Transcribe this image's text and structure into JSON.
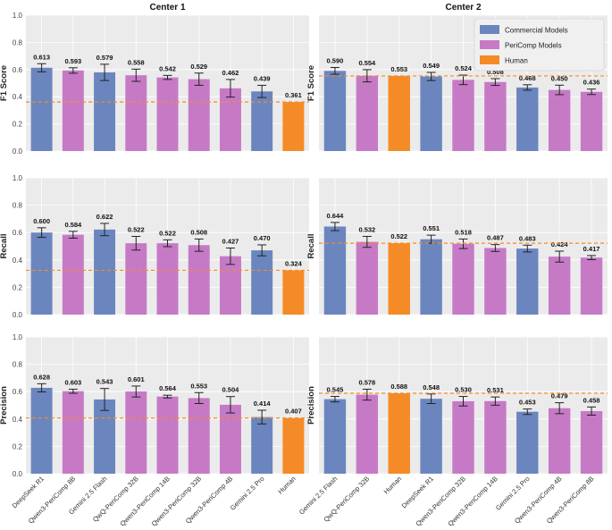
{
  "colors": {
    "commercial": "#6b86bf",
    "pericomp": "#c67ac6",
    "human": "#f58b26"
  },
  "legend": [
    {
      "key": "commercial",
      "label": "Commercial Models"
    },
    {
      "key": "pericomp",
      "label": "PeriComp Models"
    },
    {
      "key": "human",
      "label": "Human"
    }
  ],
  "chart_data": [
    {
      "type": "bar",
      "title": "Center 1",
      "ylabel": "F1 Score",
      "ylim": [
        0,
        1.0
      ],
      "yticks": [
        "0.0",
        "0.2",
        "0.4",
        "0.6",
        "0.8",
        "1.0"
      ],
      "categories": [
        "DeepSeek R1",
        "Qwen3-PeriComp 8B",
        "Gemini 2.5 Flash",
        "QwQ-PeriComp 32B",
        "Qwen3-PeriComp 14B",
        "Qwen3-PeriComp 32B",
        "Qwen3-PeriComp 4B",
        "Gemini 2.5 Pro",
        "Human"
      ],
      "groups": [
        "commercial",
        "pericomp",
        "commercial",
        "pericomp",
        "pericomp",
        "pericomp",
        "pericomp",
        "commercial",
        "human"
      ],
      "values": [
        0.613,
        0.593,
        0.579,
        0.558,
        0.542,
        0.529,
        0.462,
        0.439,
        0.361
      ],
      "labels": [
        "0.613",
        "0.593",
        "0.579",
        "0.558",
        "0.542",
        "0.529",
        "0.462",
        "0.439",
        "0.361"
      ],
      "errors": [
        0.03,
        0.02,
        0.06,
        0.045,
        0.015,
        0.045,
        0.065,
        0.045,
        0.0
      ],
      "human_line": 0.361
    },
    {
      "type": "bar",
      "title": "Center 2",
      "ylabel": "F1 Score",
      "ylim": [
        0,
        1.0
      ],
      "yticks": [
        "0.0",
        "0.2",
        "0.4",
        "0.6",
        "0.8",
        "1.0"
      ],
      "categories": [
        "Gemini 2.5 Flash",
        "QwQ-PeriComp 32B",
        "Human",
        "DeepSeek R1",
        "Qwen3-PeriComp 32B",
        "Qwen3-PeriComp 14B",
        "Gemini 2.5 Pro",
        "Qwen3-PeriComp 4B",
        "Qwen3-PeriComp 8B"
      ],
      "groups": [
        "commercial",
        "pericomp",
        "human",
        "commercial",
        "pericomp",
        "pericomp",
        "commercial",
        "pericomp",
        "pericomp"
      ],
      "values": [
        0.59,
        0.554,
        0.553,
        0.549,
        0.524,
        0.508,
        0.468,
        0.45,
        0.436
      ],
      "labels": [
        "0.590",
        "0.554",
        "0.553",
        "0.549",
        "0.524",
        "0.508",
        "0.468",
        "0.450",
        "0.436"
      ],
      "errors": [
        0.025,
        0.045,
        0.0,
        0.03,
        0.035,
        0.025,
        0.02,
        0.035,
        0.02
      ],
      "human_line": 0.553
    },
    {
      "type": "bar",
      "title": "",
      "ylabel": "Recall",
      "ylim": [
        0,
        1.0
      ],
      "yticks": [
        "0.0",
        "0.2",
        "0.4",
        "0.6",
        "0.8",
        "1.0"
      ],
      "categories": [
        "DeepSeek R1",
        "Qwen3-PeriComp 8B",
        "Gemini 2.5 Flash",
        "QwQ-PeriComp 32B",
        "Qwen3-PeriComp 14B",
        "Qwen3-PeriComp 32B",
        "Qwen3-PeriComp 4B",
        "Gemini 2.5 Pro",
        "Human"
      ],
      "groups": [
        "commercial",
        "pericomp",
        "commercial",
        "pericomp",
        "pericomp",
        "pericomp",
        "pericomp",
        "commercial",
        "human"
      ],
      "values": [
        0.6,
        0.584,
        0.622,
        0.522,
        0.522,
        0.508,
        0.427,
        0.47,
        0.324
      ],
      "labels": [
        "0.600",
        "0.584",
        "0.622",
        "0.522",
        "0.522",
        "0.508",
        "0.427",
        "0.470",
        "0.324"
      ],
      "errors": [
        0.035,
        0.025,
        0.045,
        0.05,
        0.025,
        0.045,
        0.06,
        0.04,
        0.0
      ],
      "human_line": 0.324
    },
    {
      "type": "bar",
      "title": "",
      "ylabel": "Recall",
      "ylim": [
        0,
        1.0
      ],
      "yticks": [
        "0.0",
        "0.2",
        "0.4",
        "0.6",
        "0.8",
        "1.0"
      ],
      "categories": [
        "Gemini 2.5 Flash",
        "QwQ-PeriComp 32B",
        "Human",
        "DeepSeek R1",
        "Qwen3-PeriComp 32B",
        "Qwen3-PeriComp 14B",
        "Gemini 2.5 Pro",
        "Qwen3-PeriComp 4B",
        "Qwen3-PeriComp 8B"
      ],
      "groups": [
        "commercial",
        "pericomp",
        "human",
        "commercial",
        "pericomp",
        "pericomp",
        "commercial",
        "pericomp",
        "pericomp"
      ],
      "values": [
        0.644,
        0.532,
        0.522,
        0.551,
        0.518,
        0.487,
        0.483,
        0.424,
        0.417
      ],
      "labels": [
        "0.644",
        "0.532",
        "0.522",
        "0.551",
        "0.518",
        "0.487",
        "0.483",
        "0.424",
        "0.417"
      ],
      "errors": [
        0.03,
        0.04,
        0.0,
        0.03,
        0.035,
        0.025,
        0.025,
        0.04,
        0.015
      ],
      "human_line": 0.522
    },
    {
      "type": "bar",
      "title": "",
      "ylabel": "Precision",
      "ylim": [
        0,
        1.0
      ],
      "yticks": [
        "0.0",
        "0.2",
        "0.4",
        "0.6",
        "0.8",
        "1.0"
      ],
      "categories": [
        "DeepSeek R1",
        "Qwen3-PeriComp 8B",
        "Gemini 2.5 Flash",
        "QwQ-PeriComp 32B",
        "Qwen3-PeriComp 14B",
        "Qwen3-PeriComp 32B",
        "Qwen3-PeriComp 4B",
        "Gemini 2.5 Pro",
        "Human"
      ],
      "groups": [
        "commercial",
        "pericomp",
        "commercial",
        "pericomp",
        "pericomp",
        "pericomp",
        "pericomp",
        "commercial",
        "human"
      ],
      "values": [
        0.628,
        0.603,
        0.543,
        0.601,
        0.564,
        0.553,
        0.504,
        0.414,
        0.407
      ],
      "labels": [
        "0.628",
        "0.603",
        "0.543",
        "0.601",
        "0.564",
        "0.553",
        "0.504",
        "0.414",
        "0.407"
      ],
      "errors": [
        0.03,
        0.015,
        0.08,
        0.04,
        0.01,
        0.04,
        0.06,
        0.05,
        0.0
      ],
      "human_line": 0.407
    },
    {
      "type": "bar",
      "title": "",
      "ylabel": "Precision",
      "ylim": [
        0,
        1.0
      ],
      "yticks": [
        "0.0",
        "0.2",
        "0.4",
        "0.6",
        "0.8",
        "1.0"
      ],
      "categories": [
        "Gemini 2.5 Flash",
        "QwQ-PeriComp 32B",
        "Human",
        "DeepSeek R1",
        "Qwen3-PeriComp 32B",
        "Qwen3-PeriComp 14B",
        "Gemini 2.5 Pro",
        "Qwen3-PeriComp 4B",
        "Qwen3-PeriComp 8B"
      ],
      "groups": [
        "commercial",
        "pericomp",
        "human",
        "commercial",
        "pericomp",
        "pericomp",
        "commercial",
        "pericomp",
        "pericomp"
      ],
      "values": [
        0.545,
        0.578,
        0.588,
        0.548,
        0.53,
        0.531,
        0.453,
        0.479,
        0.458
      ],
      "labels": [
        "0.545",
        "0.578",
        "0.588",
        "0.548",
        "0.530",
        "0.531",
        "0.453",
        "0.479",
        "0.458"
      ],
      "errors": [
        0.02,
        0.04,
        0.0,
        0.035,
        0.035,
        0.03,
        0.02,
        0.04,
        0.03
      ],
      "human_line": 0.588
    }
  ]
}
